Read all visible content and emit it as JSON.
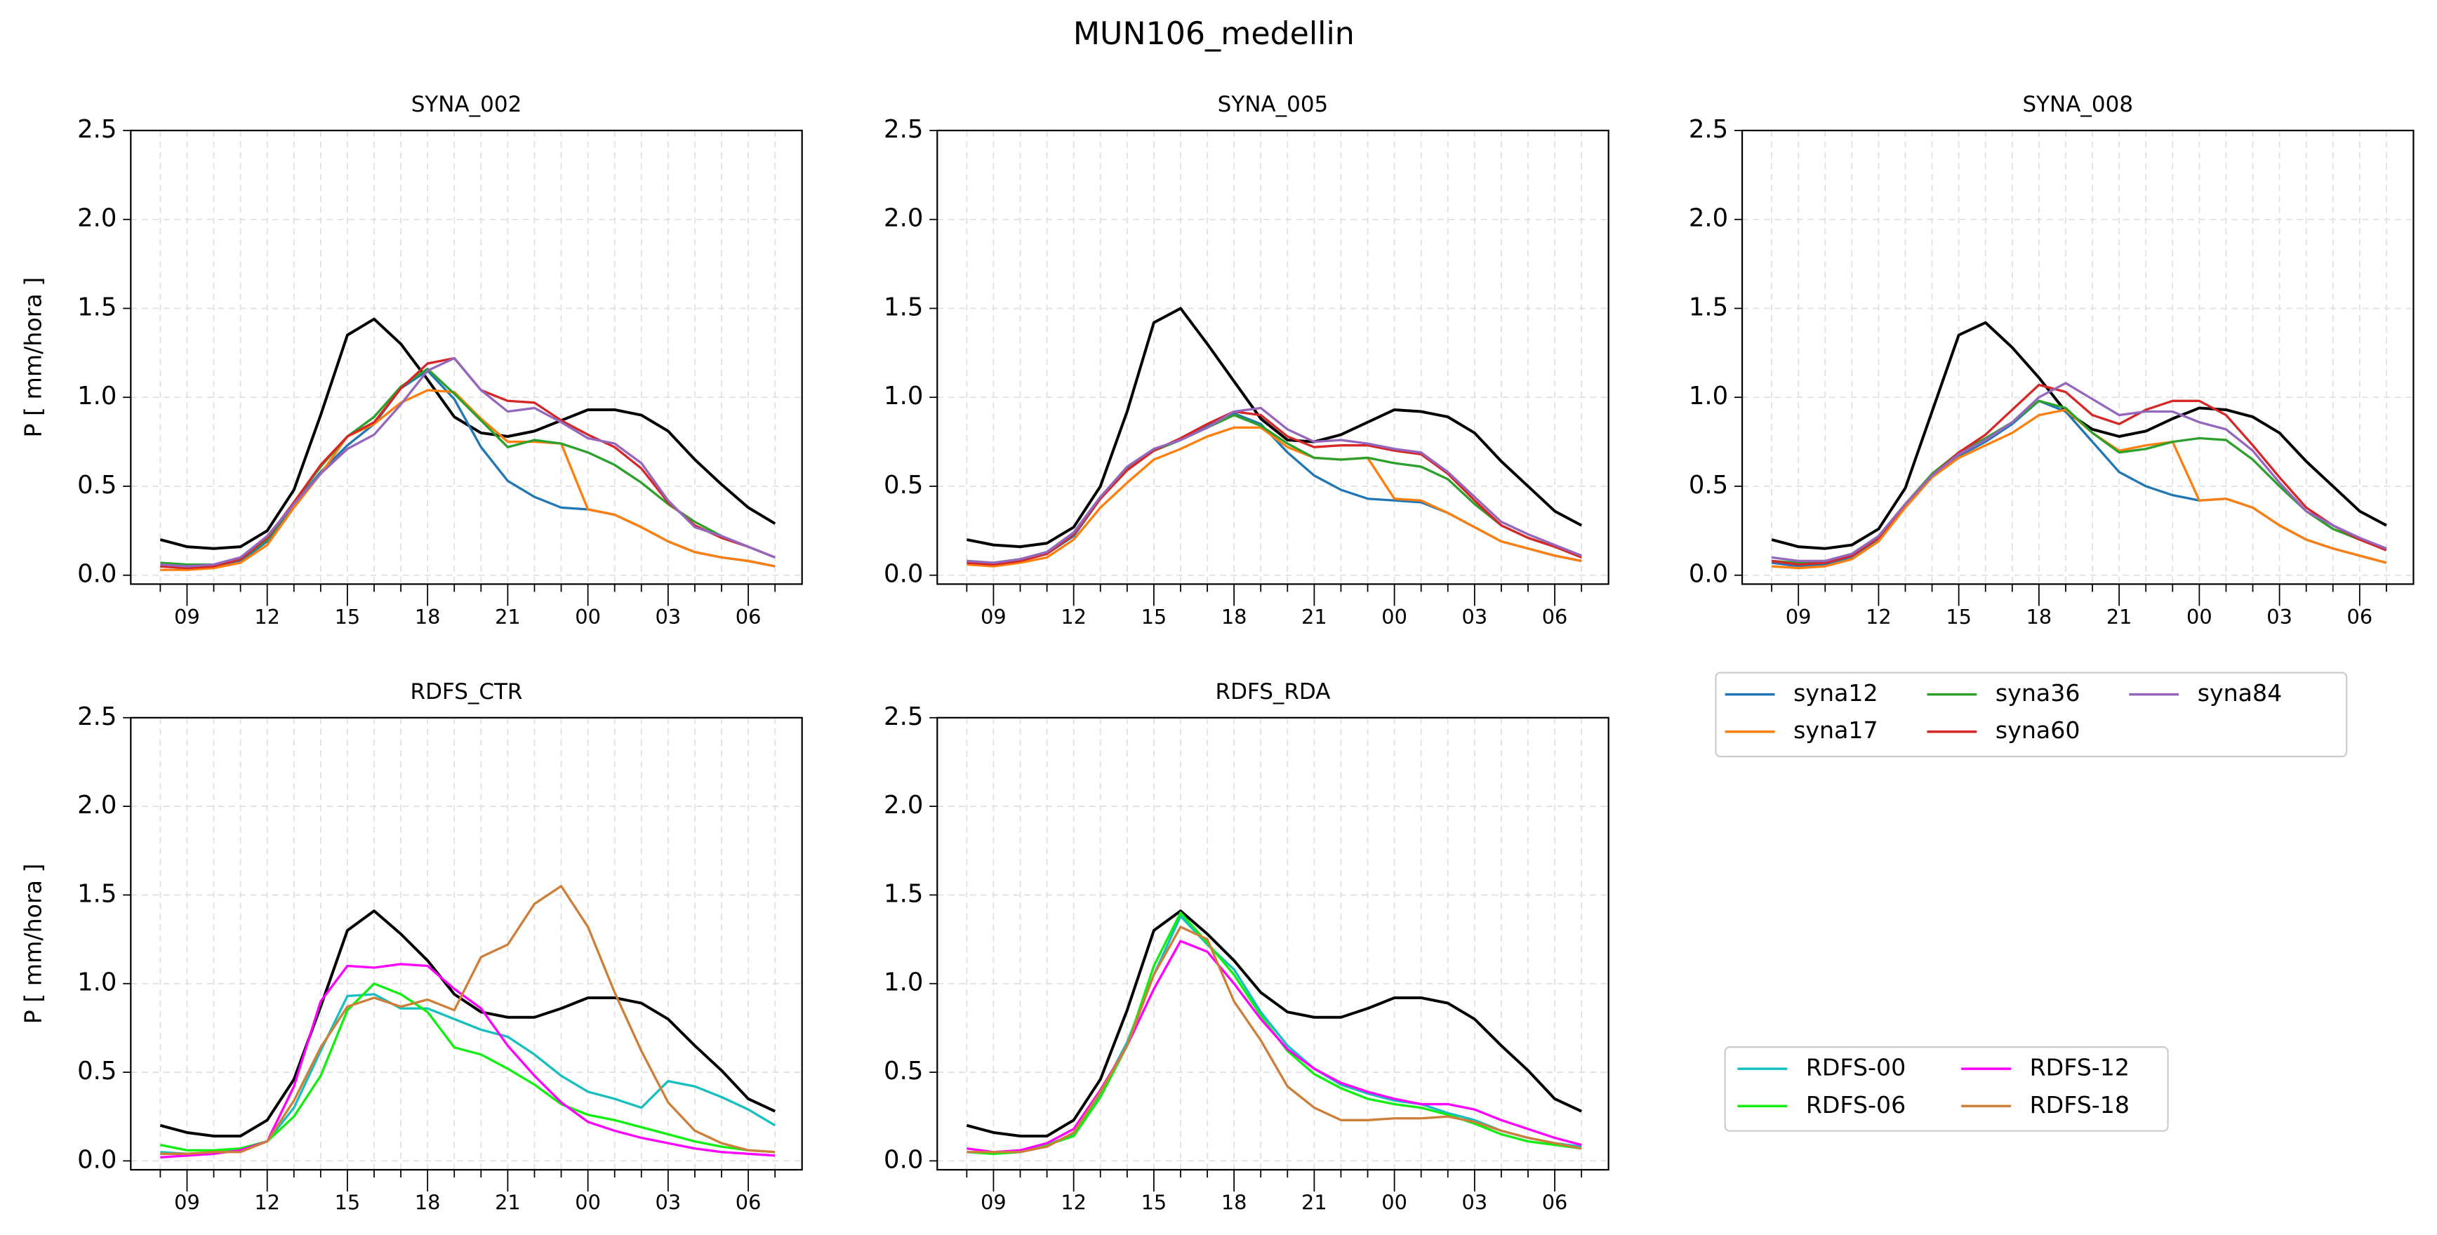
{
  "title": "MUN106_medellin",
  "chart_data": [
    {
      "type": "line",
      "title": "SYNA_002",
      "ylabel": "P [ mm/hora ]",
      "categories": [
        null,
        "09",
        null,
        null,
        "12",
        null,
        null,
        "15",
        null,
        null,
        "18",
        null,
        null,
        "21",
        null,
        null,
        "00",
        null,
        null,
        "03",
        null,
        null,
        "06",
        null
      ],
      "ylim": [
        -0.05,
        2.5
      ],
      "yticks": [
        {
          "value": 0,
          "label": "0.0"
        },
        0.5,
        {
          "value": 1,
          "label": "1.0"
        },
        1.5,
        {
          "value": 2,
          "label": "2.0"
        },
        2.5
      ],
      "grid": true,
      "series": [
        {
          "color": "#000000",
          "values": [
            0.2,
            0.16,
            0.15,
            0.16,
            0.25,
            0.48,
            0.9,
            1.35,
            1.44,
            1.3,
            1.1,
            0.89,
            0.8,
            0.78,
            0.81,
            0.87,
            0.93,
            0.93,
            0.9,
            0.81,
            0.65,
            0.51,
            0.38,
            0.29
          ]
        },
        {
          "name": "syna12",
          "color": "#1f77b4",
          "values": [
            0.05,
            0.04,
            0.05,
            0.08,
            0.19,
            0.4,
            0.58,
            0.73,
            0.85,
            1.05,
            1.15,
            0.99,
            0.72,
            0.53,
            0.44,
            0.38,
            0.37,
            0.34,
            0.27,
            0.19,
            0.13,
            0.1,
            0.08,
            0.05
          ]
        },
        {
          "name": "syna17",
          "color": "#ff7f0e",
          "values": [
            0.03,
            0.03,
            0.04,
            0.07,
            0.17,
            0.38,
            0.57,
            0.78,
            0.85,
            0.97,
            1.04,
            1.03,
            0.88,
            0.75,
            0.75,
            0.74,
            0.37,
            0.34,
            0.27,
            0.19,
            0.13,
            0.1,
            0.08,
            0.05
          ]
        },
        {
          "name": "syna36",
          "color": "#2ca02c",
          "values": [
            0.07,
            0.06,
            0.06,
            0.09,
            0.2,
            0.41,
            0.61,
            0.78,
            0.89,
            1.06,
            1.16,
            1.02,
            0.87,
            0.72,
            0.76,
            0.74,
            0.69,
            0.62,
            0.52,
            0.4,
            0.3,
            0.22,
            0.16,
            0.1
          ]
        },
        {
          "name": "syna60",
          "color": "#d62728",
          "values": [
            0.05,
            0.04,
            0.05,
            0.09,
            0.21,
            0.41,
            0.62,
            0.78,
            0.86,
            1.05,
            1.19,
            1.22,
            1.04,
            0.98,
            0.97,
            0.87,
            0.79,
            0.72,
            0.6,
            0.41,
            0.28,
            0.21,
            0.16,
            0.1
          ]
        },
        {
          "name": "syna84",
          "color": "#9467bd",
          "values": [
            0.06,
            0.05,
            0.06,
            0.1,
            0.22,
            0.4,
            0.57,
            0.71,
            0.79,
            0.96,
            1.15,
            1.22,
            1.04,
            0.92,
            0.94,
            0.86,
            0.77,
            0.74,
            0.63,
            0.42,
            0.27,
            0.22,
            0.16,
            0.1
          ]
        }
      ]
    },
    {
      "type": "line",
      "title": "SYNA_005",
      "categories": [
        null,
        "09",
        null,
        null,
        "12",
        null,
        null,
        "15",
        null,
        null,
        "18",
        null,
        null,
        "21",
        null,
        null,
        "00",
        null,
        null,
        "03",
        null,
        null,
        "06",
        null
      ],
      "ylim": [
        -0.05,
        2.5
      ],
      "yticks": [
        {
          "value": 0,
          "label": "0.0"
        },
        0.5,
        {
          "value": 1,
          "label": "1.0"
        },
        1.5,
        {
          "value": 2,
          "label": "2.0"
        },
        2.5
      ],
      "grid": true,
      "series": [
        {
          "color": "#000000",
          "values": [
            0.2,
            0.17,
            0.16,
            0.18,
            0.27,
            0.5,
            0.92,
            1.42,
            1.5,
            1.3,
            1.09,
            0.88,
            0.76,
            0.75,
            0.79,
            0.86,
            0.93,
            0.92,
            0.89,
            0.8,
            0.64,
            0.5,
            0.36,
            0.28
          ]
        },
        {
          "name": "syna12",
          "color": "#1f77b4",
          "values": [
            0.07,
            0.06,
            0.08,
            0.12,
            0.22,
            0.43,
            0.6,
            0.7,
            0.76,
            0.84,
            0.91,
            0.85,
            0.69,
            0.56,
            0.48,
            0.43,
            0.42,
            0.41,
            0.35,
            0.27,
            0.19,
            0.15,
            0.11,
            0.08
          ]
        },
        {
          "name": "syna17",
          "color": "#ff7f0e",
          "values": [
            0.06,
            0.05,
            0.07,
            0.1,
            0.2,
            0.38,
            0.52,
            0.65,
            0.71,
            0.78,
            0.83,
            0.83,
            0.72,
            0.66,
            0.65,
            0.66,
            0.43,
            0.42,
            0.35,
            0.27,
            0.19,
            0.15,
            0.11,
            0.08
          ]
        },
        {
          "name": "syna36",
          "color": "#2ca02c",
          "values": [
            0.08,
            0.07,
            0.09,
            0.13,
            0.24,
            0.44,
            0.6,
            0.7,
            0.76,
            0.83,
            0.9,
            0.84,
            0.74,
            0.66,
            0.65,
            0.66,
            0.63,
            0.61,
            0.54,
            0.4,
            0.28,
            0.21,
            0.16,
            0.11
          ]
        },
        {
          "name": "syna60",
          "color": "#d62728",
          "values": [
            0.07,
            0.06,
            0.08,
            0.12,
            0.23,
            0.43,
            0.59,
            0.7,
            0.77,
            0.85,
            0.92,
            0.9,
            0.78,
            0.72,
            0.73,
            0.73,
            0.7,
            0.68,
            0.57,
            0.42,
            0.28,
            0.21,
            0.16,
            0.1
          ]
        },
        {
          "name": "syna84",
          "color": "#9467bd",
          "values": [
            0.08,
            0.07,
            0.09,
            0.13,
            0.24,
            0.44,
            0.61,
            0.71,
            0.76,
            0.83,
            0.92,
            0.94,
            0.82,
            0.75,
            0.76,
            0.74,
            0.71,
            0.69,
            0.58,
            0.44,
            0.3,
            0.23,
            0.17,
            0.11
          ]
        }
      ]
    },
    {
      "type": "line",
      "title": "SYNA_008",
      "legend": true,
      "categories": [
        null,
        "09",
        null,
        null,
        "12",
        null,
        null,
        "15",
        null,
        null,
        "18",
        null,
        null,
        "21",
        null,
        null,
        "00",
        null,
        null,
        "03",
        null,
        null,
        "06",
        null
      ],
      "ylim": [
        -0.05,
        2.5
      ],
      "yticks": [
        {
          "value": 0,
          "label": "0.0"
        },
        0.5,
        {
          "value": 1,
          "label": "1.0"
        },
        1.5,
        {
          "value": 2,
          "label": "2.0"
        },
        2.5
      ],
      "grid": true,
      "series": [
        {
          "color": "#000000",
          "values": [
            0.2,
            0.16,
            0.15,
            0.17,
            0.26,
            0.49,
            0.92,
            1.35,
            1.42,
            1.28,
            1.11,
            0.92,
            0.82,
            0.78,
            0.81,
            0.88,
            0.94,
            0.93,
            0.89,
            0.8,
            0.64,
            0.5,
            0.36,
            0.28
          ]
        },
        {
          "name": "syna12",
          "color": "#1f77b4",
          "values": [
            0.07,
            0.05,
            0.06,
            0.1,
            0.2,
            0.39,
            0.56,
            0.67,
            0.75,
            0.85,
            0.98,
            0.92,
            0.75,
            0.58,
            0.5,
            0.45,
            0.42,
            0.43,
            0.38,
            0.28,
            0.2,
            0.15,
            0.11,
            0.07
          ]
        },
        {
          "name": "syna17",
          "color": "#ff7f0e",
          "values": [
            0.05,
            0.04,
            0.05,
            0.09,
            0.19,
            0.38,
            0.55,
            0.66,
            0.73,
            0.8,
            0.9,
            0.93,
            0.8,
            0.7,
            0.73,
            0.75,
            0.42,
            0.43,
            0.38,
            0.28,
            0.2,
            0.15,
            0.11,
            0.07
          ]
        },
        {
          "name": "syna36",
          "color": "#2ca02c",
          "values": [
            0.08,
            0.07,
            0.08,
            0.12,
            0.22,
            0.4,
            0.57,
            0.69,
            0.77,
            0.86,
            0.98,
            0.94,
            0.8,
            0.69,
            0.71,
            0.75,
            0.77,
            0.76,
            0.65,
            0.5,
            0.36,
            0.26,
            0.2,
            0.15
          ]
        },
        {
          "name": "syna60",
          "color": "#d62728",
          "values": [
            0.08,
            0.06,
            0.07,
            0.11,
            0.21,
            0.4,
            0.56,
            0.69,
            0.79,
            0.93,
            1.07,
            1.03,
            0.9,
            0.85,
            0.93,
            0.98,
            0.98,
            0.9,
            0.73,
            0.55,
            0.38,
            0.28,
            0.2,
            0.14
          ]
        },
        {
          "name": "syna84",
          "color": "#9467bd",
          "values": [
            0.1,
            0.08,
            0.08,
            0.12,
            0.22,
            0.4,
            0.56,
            0.68,
            0.76,
            0.86,
            1.0,
            1.08,
            0.99,
            0.9,
            0.92,
            0.92,
            0.86,
            0.82,
            0.7,
            0.52,
            0.36,
            0.28,
            0.21,
            0.15
          ]
        }
      ]
    },
    {
      "type": "line",
      "title": "RDFS_CTR",
      "ylabel": "P [ mm/hora ]",
      "categories": [
        null,
        "09",
        null,
        null,
        "12",
        null,
        null,
        "15",
        null,
        null,
        "18",
        null,
        null,
        "21",
        null,
        null,
        "00",
        null,
        null,
        "03",
        null,
        null,
        "06",
        null
      ],
      "ylim": [
        -0.05,
        2.5
      ],
      "yticks": [
        {
          "value": 0,
          "label": "0.0"
        },
        0.5,
        {
          "value": 1,
          "label": "1.0"
        },
        1.5,
        {
          "value": 2,
          "label": "2.0"
        },
        2.5
      ],
      "grid": true,
      "series": [
        {
          "color": "#000000",
          "values": [
            0.2,
            0.16,
            0.14,
            0.14,
            0.23,
            0.46,
            0.87,
            1.3,
            1.41,
            1.28,
            1.13,
            0.94,
            0.84,
            0.81,
            0.81,
            0.86,
            0.92,
            0.92,
            0.89,
            0.8,
            0.65,
            0.51,
            0.35,
            0.28
          ]
        },
        {
          "name": "RDFS-00",
          "color": "#17bfbf",
          "values": [
            0.05,
            0.04,
            0.05,
            0.07,
            0.11,
            0.3,
            0.62,
            0.93,
            0.94,
            0.86,
            0.86,
            0.8,
            0.74,
            0.7,
            0.6,
            0.48,
            0.39,
            0.35,
            0.3,
            0.45,
            0.42,
            0.36,
            0.29,
            0.2
          ]
        },
        {
          "name": "RDFS-06",
          "color": "#11ee11",
          "values": [
            0.09,
            0.06,
            0.06,
            0.07,
            0.11,
            0.25,
            0.48,
            0.85,
            1.0,
            0.94,
            0.84,
            0.64,
            0.6,
            0.52,
            0.43,
            0.32,
            0.26,
            0.23,
            0.19,
            0.15,
            0.11,
            0.08,
            0.06,
            0.05
          ]
        },
        {
          "name": "RDFS-12",
          "color": "#ff00ff",
          "values": [
            0.02,
            0.03,
            0.04,
            0.06,
            0.11,
            0.42,
            0.9,
            1.1,
            1.09,
            1.11,
            1.1,
            0.97,
            0.86,
            0.65,
            0.48,
            0.33,
            0.22,
            0.17,
            0.13,
            0.1,
            0.07,
            0.05,
            0.04,
            0.03
          ]
        },
        {
          "name": "RDFS-18",
          "color": "#cd7f3a",
          "values": [
            0.04,
            0.04,
            0.05,
            0.05,
            0.11,
            0.34,
            0.64,
            0.87,
            0.92,
            0.87,
            0.91,
            0.85,
            1.15,
            1.22,
            1.45,
            1.55,
            1.32,
            0.95,
            0.62,
            0.33,
            0.17,
            0.1,
            0.06,
            0.05
          ]
        }
      ]
    },
    {
      "type": "line",
      "title": "RDFS_RDA",
      "legend": true,
      "categories": [
        null,
        "09",
        null,
        null,
        "12",
        null,
        null,
        "15",
        null,
        null,
        "18",
        null,
        null,
        "21",
        null,
        null,
        "00",
        null,
        null,
        "03",
        null,
        null,
        "06",
        null
      ],
      "ylim": [
        -0.05,
        2.5
      ],
      "yticks": [
        {
          "value": 0,
          "label": "0.0"
        },
        0.5,
        {
          "value": 1,
          "label": "1.0"
        },
        1.5,
        {
          "value": 2,
          "label": "2.0"
        },
        2.5
      ],
      "grid": true,
      "series": [
        {
          "color": "#000000",
          "values": [
            0.2,
            0.16,
            0.14,
            0.14,
            0.23,
            0.46,
            0.85,
            1.3,
            1.41,
            1.28,
            1.13,
            0.95,
            0.84,
            0.81,
            0.81,
            0.86,
            0.92,
            0.92,
            0.89,
            0.8,
            0.65,
            0.51,
            0.35,
            0.28
          ]
        },
        {
          "name": "RDFS-00",
          "color": "#17bfbf",
          "values": [
            0.05,
            0.04,
            0.05,
            0.09,
            0.15,
            0.38,
            0.67,
            1.05,
            1.38,
            1.22,
            1.08,
            0.84,
            0.65,
            0.52,
            0.43,
            0.38,
            0.34,
            0.32,
            0.27,
            0.23,
            0.17,
            0.13,
            0.1,
            0.08
          ]
        },
        {
          "name": "RDFS-06",
          "color": "#11ee11",
          "values": [
            0.05,
            0.04,
            0.05,
            0.09,
            0.14,
            0.36,
            0.65,
            1.1,
            1.4,
            1.23,
            1.05,
            0.82,
            0.62,
            0.49,
            0.41,
            0.35,
            0.32,
            0.3,
            0.26,
            0.21,
            0.15,
            0.11,
            0.09,
            0.07
          ]
        },
        {
          "name": "RDFS-12",
          "color": "#ff00ff",
          "values": [
            0.07,
            0.05,
            0.06,
            0.1,
            0.18,
            0.4,
            0.65,
            0.97,
            1.24,
            1.18,
            1.0,
            0.8,
            0.63,
            0.52,
            0.44,
            0.39,
            0.35,
            0.32,
            0.32,
            0.29,
            0.23,
            0.18,
            0.13,
            0.09
          ]
        },
        {
          "name": "RDFS-18",
          "color": "#cd7f3a",
          "values": [
            0.05,
            0.05,
            0.05,
            0.08,
            0.16,
            0.39,
            0.65,
            1.05,
            1.32,
            1.25,
            0.9,
            0.68,
            0.42,
            0.3,
            0.23,
            0.23,
            0.24,
            0.24,
            0.25,
            0.22,
            0.17,
            0.13,
            0.1,
            0.07
          ]
        }
      ]
    }
  ]
}
